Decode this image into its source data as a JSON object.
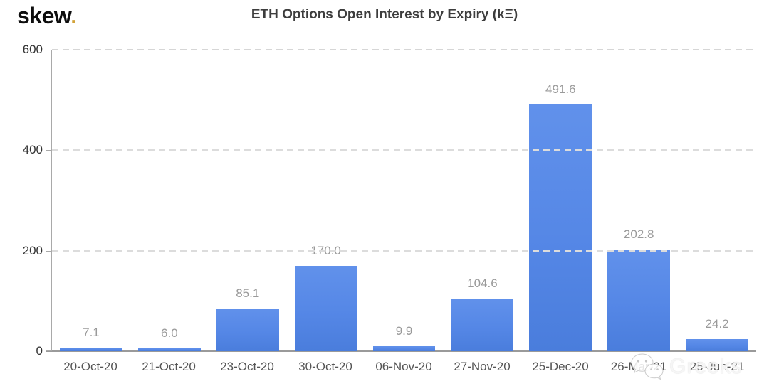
{
  "header": {
    "logo_text": "skew",
    "logo_dot": ".",
    "logo_dot_color": "#d2a238"
  },
  "chart_data": {
    "type": "bar",
    "title": "ETH Options Open Interest by Expiry (kΞ)",
    "categories": [
      "20-Oct-20",
      "21-Oct-20",
      "23-Oct-20",
      "30-Oct-20",
      "06-Nov-20",
      "27-Nov-20",
      "25-Dec-20",
      "26-Mar-21",
      "25-Jun-21"
    ],
    "values": [
      7.1,
      6.0,
      85.1,
      170.0,
      9.9,
      104.6,
      491.6,
      202.8,
      24.2
    ],
    "value_labels": [
      "7.1",
      "6.0",
      "85.1",
      "170.0",
      "9.9",
      "104.6",
      "491.6",
      "202.8",
      "24.2"
    ],
    "xlabel": "",
    "ylabel": "",
    "ylim": [
      0,
      600
    ],
    "yticks": [
      0,
      200,
      400,
      600
    ],
    "ytick_labels": [
      "0",
      "200",
      "400",
      "600"
    ],
    "grid": "horizontal-dashed",
    "legend_position": "none",
    "bar_color": "#5587e6",
    "value_label_color": "#9a9a9a"
  },
  "watermark": {
    "label": "Greeks",
    "icon": "wechat-icon"
  }
}
